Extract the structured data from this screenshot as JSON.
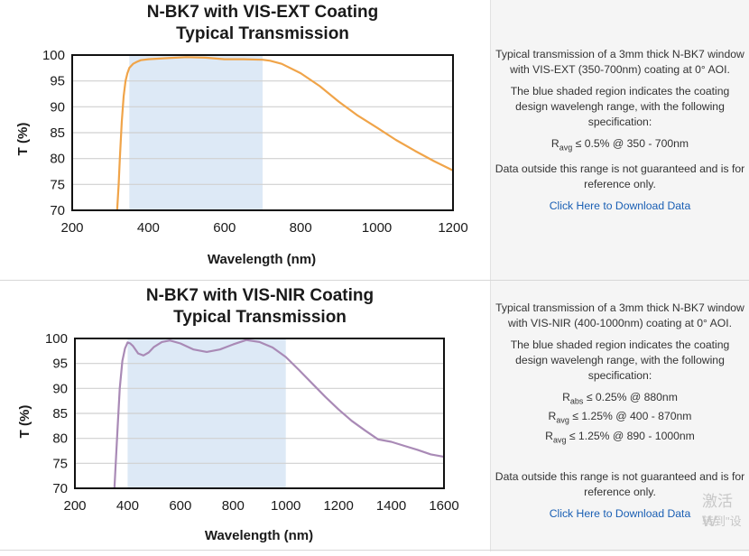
{
  "charts": [
    {
      "type": "line",
      "title": [
        "N-BK7 with VIS-EXT Coating",
        "Typical Transmission"
      ],
      "xlabel": "Wavelength (nm)",
      "ylabel": "T (%)",
      "xlim": [
        200,
        1200
      ],
      "ylim": [
        70,
        100
      ],
      "xticks": [
        200,
        400,
        600,
        800,
        1000,
        1200
      ],
      "yticks": [
        70,
        75,
        80,
        85,
        90,
        95,
        100
      ],
      "shaded_range": [
        350,
        700
      ],
      "shade_color": "#dde9f6",
      "line_color": "#f0a449",
      "grid": true,
      "series": [
        {
          "x": [
            318,
            322,
            325,
            330,
            335,
            340,
            345,
            350,
            360,
            370,
            380,
            400,
            450,
            500,
            550,
            600,
            650,
            700,
            720,
            750,
            800,
            850,
            900,
            950,
            1000,
            1050,
            1100,
            1150,
            1200
          ],
          "y": [
            70,
            75,
            80,
            87,
            92,
            95,
            96.5,
            97.5,
            98.3,
            98.7,
            99,
            99.2,
            99.4,
            99.6,
            99.5,
            99.2,
            99.2,
            99.1,
            98.9,
            98.3,
            96.5,
            94,
            91,
            88.3,
            86,
            83.6,
            81.5,
            79.5,
            77.7
          ]
        }
      ]
    },
    {
      "type": "line",
      "title": [
        "N-BK7 with VIS-NIR Coating",
        "Typical Transmission"
      ],
      "xlabel": "Wavelength (nm)",
      "ylabel": "T (%)",
      "xlim": [
        200,
        1600
      ],
      "ylim": [
        70,
        100
      ],
      "xticks": [
        200,
        400,
        600,
        800,
        1000,
        1200,
        1400,
        1600
      ],
      "yticks": [
        70,
        75,
        80,
        85,
        90,
        95,
        100
      ],
      "shaded_range": [
        400,
        1000
      ],
      "shade_color": "#dde9f6",
      "line_color": "#a98ab6",
      "grid": true,
      "series": [
        {
          "x": [
            350,
            360,
            370,
            380,
            390,
            400,
            410,
            420,
            440,
            460,
            480,
            500,
            530,
            560,
            600,
            650,
            700,
            750,
            800,
            850,
            900,
            950,
            1000,
            1050,
            1100,
            1150,
            1200,
            1250,
            1300,
            1350,
            1400,
            1450,
            1500,
            1550,
            1600
          ],
          "y": [
            70,
            80,
            90,
            95.5,
            98,
            99.2,
            99,
            98.5,
            97,
            96.6,
            97.2,
            98.3,
            99.3,
            99.6,
            99,
            97.8,
            97.3,
            97.8,
            98.8,
            99.7,
            99.3,
            98.2,
            96.3,
            93.7,
            91,
            88.3,
            85.8,
            83.5,
            81.6,
            79.8,
            79.3,
            78.5,
            77.7,
            76.8,
            76.3
          ]
        }
      ]
    }
  ],
  "descriptions": [
    {
      "intro": "Typical transmission of a 3mm thick N-BK7 window with VIS-EXT (350-700nm) coating at 0° AOI.",
      "shade_note": "The blue shaded region indicates the coating design wavelengh range, with the following specification:",
      "specs": [
        {
          "sym": "R",
          "sub": "avg",
          "rest": " ≤ 0.5% @ 350 - 700nm"
        }
      ],
      "disclaimer": "Data outside this range is not guaranteed and is for reference only.",
      "download": "Click Here to Download Data"
    },
    {
      "intro": "Typical transmission of a 3mm thick N-BK7 window with VIS-NIR (400-1000nm) coating at 0° AOI.",
      "shade_note": "The blue shaded region indicates the coating design wavelengh range, with the following specification:",
      "specs": [
        {
          "sym": "R",
          "sub": "abs",
          "rest": " ≤ 0.25% @ 880nm"
        },
        {
          "sym": "R",
          "sub": "avg",
          "rest": " ≤ 1.25% @ 400 - 870nm"
        },
        {
          "sym": "R",
          "sub": "avg",
          "rest": " ≤ 1.25% @ 890 - 1000nm"
        }
      ],
      "disclaimer": "Data outside this range is not guaranteed and is for reference only.",
      "download": "Click Here to Download Data"
    }
  ],
  "watermark": [
    "激活 W",
    "转到\"设"
  ]
}
